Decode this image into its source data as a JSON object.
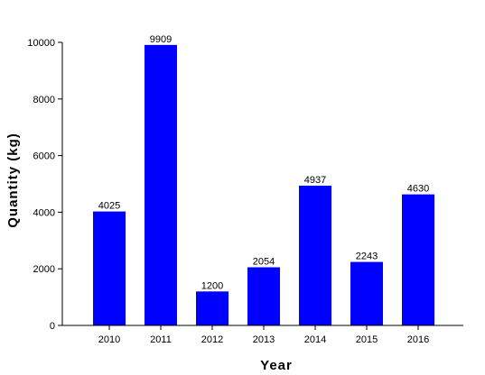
{
  "chart_data": {
    "type": "bar",
    "categories": [
      "2010",
      "2011",
      "2012",
      "2013",
      "2014",
      "2015",
      "2016"
    ],
    "values": [
      4025,
      9909,
      1200,
      2054,
      4937,
      2243,
      4630
    ],
    "data_labels": [
      "4025",
      "9909",
      "1200",
      "2054",
      "4937",
      "2243",
      "4630"
    ],
    "xlabel": "Year",
    "ylabel": "Quantity (kg)",
    "ylim": [
      0,
      10000
    ],
    "yticks": [
      0,
      2000,
      4000,
      6000,
      8000,
      10000
    ],
    "ytick_labels": [
      "0",
      "2000",
      "4000",
      "6000",
      "8000",
      "10000"
    ],
    "grid": false,
    "legend": "none",
    "bar_color": "#0000ff"
  }
}
